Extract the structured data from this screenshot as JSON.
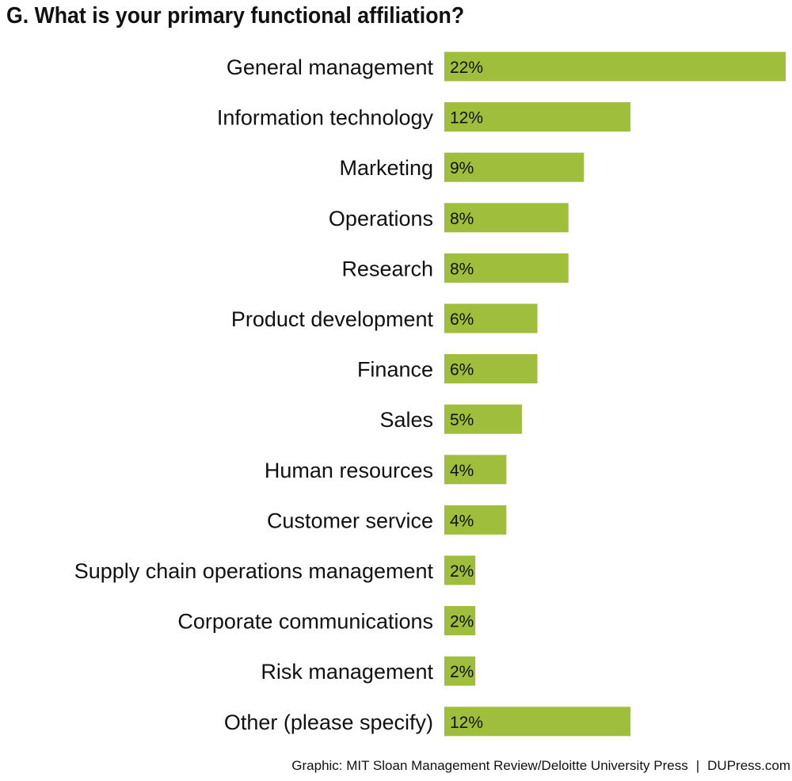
{
  "chart_data": {
    "type": "bar",
    "orientation": "horizontal",
    "title": "G. What is your primary functional affiliation?",
    "categories": [
      "General management",
      "Information technology",
      "Marketing",
      "Operations",
      "Research",
      "Product development",
      "Finance",
      "Sales",
      "Human resources",
      "Customer service",
      "Supply chain operations management",
      "Corporate communications",
      "Risk management",
      "Other (please specify)"
    ],
    "values": [
      22,
      12,
      9,
      8,
      8,
      6,
      6,
      5,
      4,
      4,
      2,
      2,
      2,
      12
    ],
    "value_labels": [
      "22%",
      "12%",
      "9%",
      "8%",
      "8%",
      "6%",
      "6%",
      "5%",
      "4%",
      "4%",
      "2%",
      "2%",
      "2%",
      "12%"
    ],
    "unit": "%",
    "xlabel": "",
    "ylabel": "",
    "grid": false,
    "legend": "none",
    "bar_color": "#9fbe3c"
  },
  "footer": {
    "source": "Graphic: MIT Sloan Management Review/Deloitte University Press",
    "separator": "|",
    "site": "DUPress.com"
  }
}
